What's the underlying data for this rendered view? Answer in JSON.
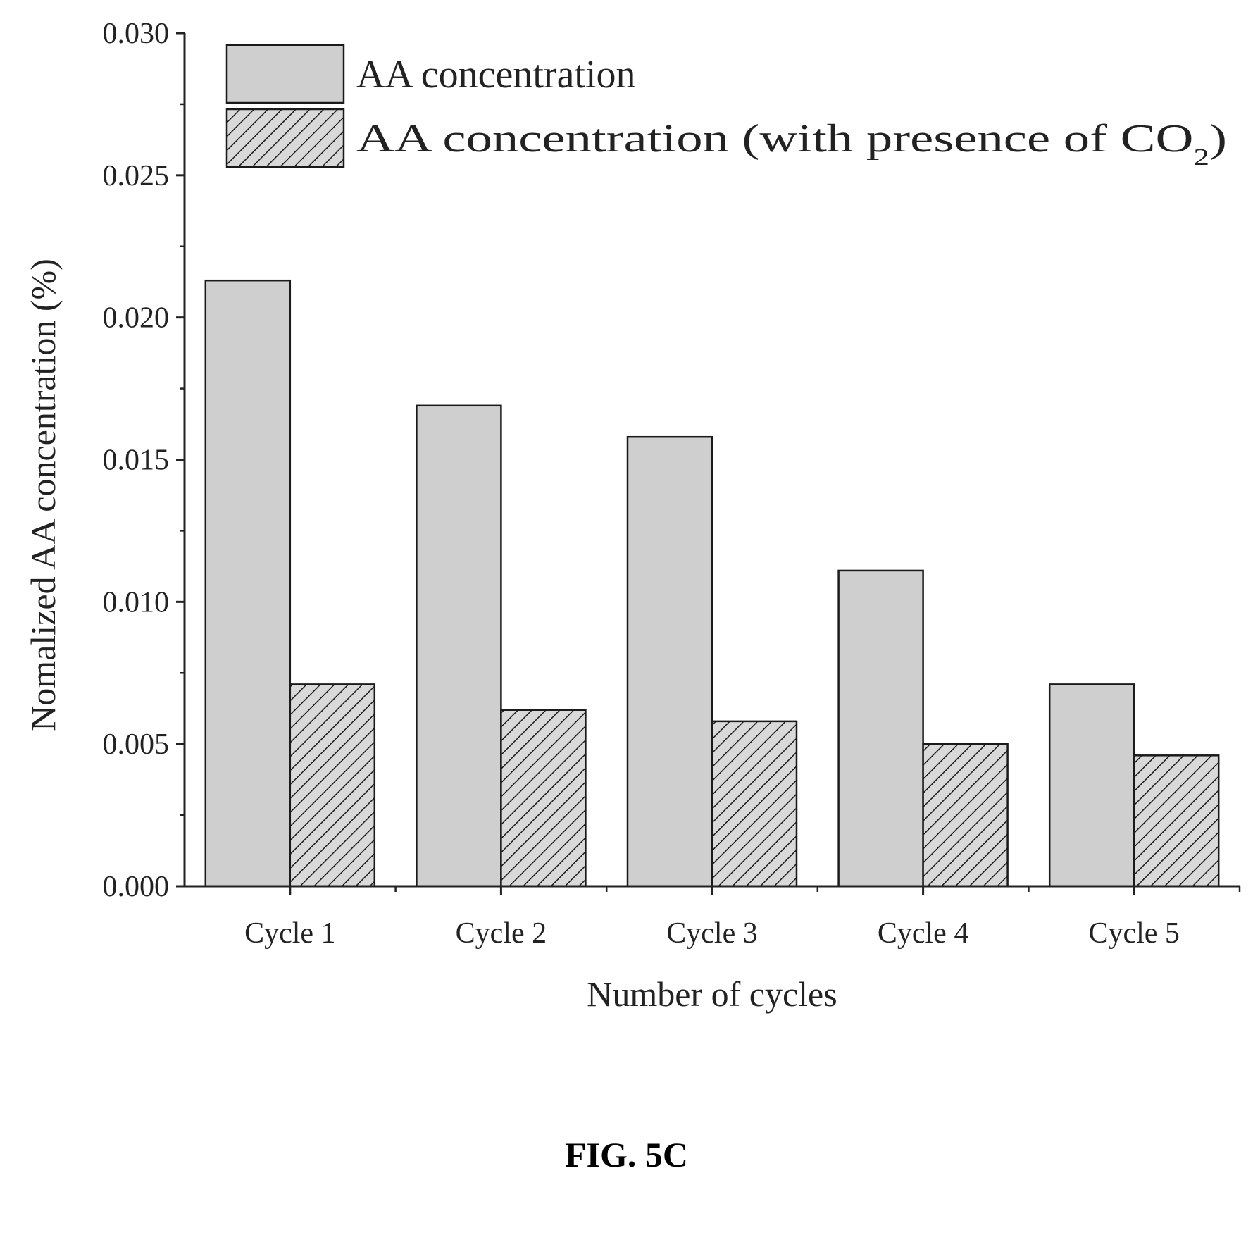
{
  "figure": {
    "caption": "FIG. 5C"
  },
  "colors": {
    "axis": "#222222",
    "bar_solid_fill": "#cfcfcf",
    "bar_hatch_fill": "#d9d9d9",
    "bar_stroke": "#1a1a1a",
    "hatch_line": "#1a1a1a",
    "text": "#222222"
  },
  "chart_data": {
    "type": "bar",
    "title": "",
    "xlabel": "Number of cycles",
    "ylabel": "Nomalized AA concentration (%)",
    "ylim": [
      0,
      0.03
    ],
    "yticks": [
      "0.000",
      "0.005",
      "0.010",
      "0.015",
      "0.020",
      "0.025",
      "0.030"
    ],
    "categories": [
      "Cycle 1",
      "Cycle 2",
      "Cycle 3",
      "Cycle 4",
      "Cycle 5"
    ],
    "series": [
      {
        "name": "AA concentration",
        "pattern": "solid",
        "values": [
          0.0213,
          0.0169,
          0.0158,
          0.0111,
          0.0071
        ]
      },
      {
        "name": "AA concentration (with presence of CO",
        "name_subscript": "2",
        "name_suffix": ")",
        "pattern": "hatch",
        "values": [
          0.0071,
          0.0062,
          0.0058,
          0.005,
          0.0046
        ]
      }
    ],
    "legend_position": "top-left",
    "grid": false
  }
}
